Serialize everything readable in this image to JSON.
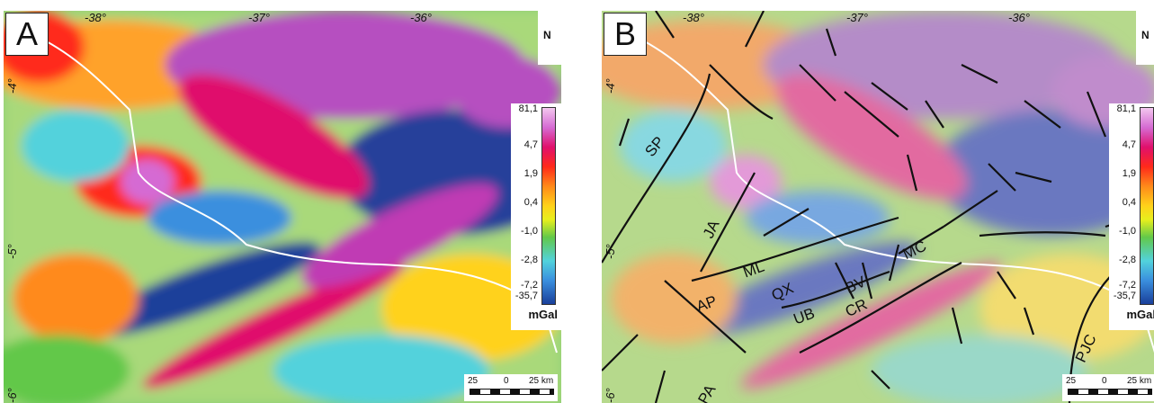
{
  "panels": [
    {
      "label": "A",
      "top_ticks": [
        "-38°",
        "-37°",
        "-36°"
      ],
      "left_ticks": [
        "-4°",
        "-5°",
        "-6°"
      ]
    },
    {
      "label": "B",
      "top_ticks": [
        "-38°",
        "-37°",
        "-36°"
      ],
      "left_ticks": [
        "-4°",
        "-5°",
        "-6°"
      ],
      "fault_labels": [
        "SP",
        "JA",
        "ML",
        "QX",
        "BV",
        "MC",
        "AP",
        "UB",
        "CR",
        "PJC",
        "PA"
      ]
    }
  ],
  "legend": {
    "values": [
      "81,1",
      "4,7",
      "1,9",
      "0,4",
      "-1,0",
      "-2,8",
      "-7,2",
      "-35,7"
    ],
    "unit": "mGal"
  },
  "scale": {
    "labels": [
      "25",
      "0",
      "25 km"
    ]
  },
  "north_label": "N",
  "colors": {
    "high": "#d56bd3",
    "red": "#ff2a1a",
    "orange": "#ff8a1a",
    "yellow": "#ffd21a",
    "green": "#62c84a",
    "cyan": "#52d2dc",
    "blue": "#1a3f9a"
  }
}
